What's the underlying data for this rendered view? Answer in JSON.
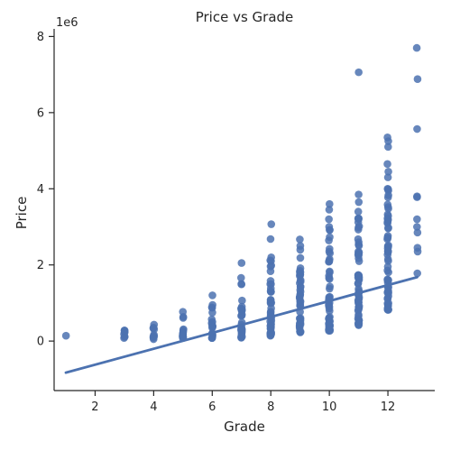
{
  "chart_data": {
    "type": "scatter",
    "title": "Price vs Grade",
    "xlabel": "Grade",
    "ylabel": "Price",
    "y_multiplier_label": "1e6",
    "xlim": [
      0.6,
      13.6
    ],
    "ylim": [
      -1.3,
      8.2
    ],
    "x_ticks": [
      2,
      4,
      6,
      8,
      10,
      12
    ],
    "y_ticks": [
      0,
      2,
      4,
      6,
      8
    ],
    "point_color": "#4c72b0",
    "line_color": "#4c72b0",
    "grid": false,
    "regression_line": {
      "x": [
        1,
        13
      ],
      "y": [
        -0.83,
        1.68
      ]
    },
    "columns": [
      {
        "x": 1,
        "min": 0.14,
        "max": 0.14,
        "outliers": []
      },
      {
        "x": 3,
        "min": 0.08,
        "max": 0.28,
        "outliers": []
      },
      {
        "x": 4,
        "min": 0.05,
        "max": 0.43,
        "outliers": []
      },
      {
        "x": 5,
        "min": 0.08,
        "max": 0.77,
        "outliers": []
      },
      {
        "x": 6,
        "min": 0.08,
        "max": 0.95,
        "outliers": [
          1.2
        ]
      },
      {
        "x": 7,
        "min": 0.09,
        "max": 1.5,
        "outliers": [
          1.66,
          2.05
        ]
      },
      {
        "x": 8,
        "min": 0.14,
        "max": 2.2,
        "outliers": [
          2.68,
          3.07
        ]
      },
      {
        "x": 9,
        "min": 0.23,
        "max": 2.5,
        "outliers": [
          2.67
        ]
      },
      {
        "x": 10,
        "min": 0.27,
        "max": 3.0,
        "outliers": [
          3.2,
          3.45,
          3.6
        ]
      },
      {
        "x": 11,
        "min": 0.42,
        "max": 3.4,
        "outliers": [
          3.65,
          3.85,
          7.06
        ]
      },
      {
        "x": 12,
        "min": 0.82,
        "max": 4.0,
        "outliers": [
          4.3,
          4.45,
          4.65,
          5.1,
          5.25,
          5.35
        ]
      },
      {
        "x": 13,
        "min": 1.78,
        "max": 1.78,
        "outliers": [
          2.35,
          2.45,
          2.85,
          3.0,
          3.2,
          3.78,
          3.8,
          5.57,
          6.88,
          7.7
        ]
      }
    ]
  }
}
